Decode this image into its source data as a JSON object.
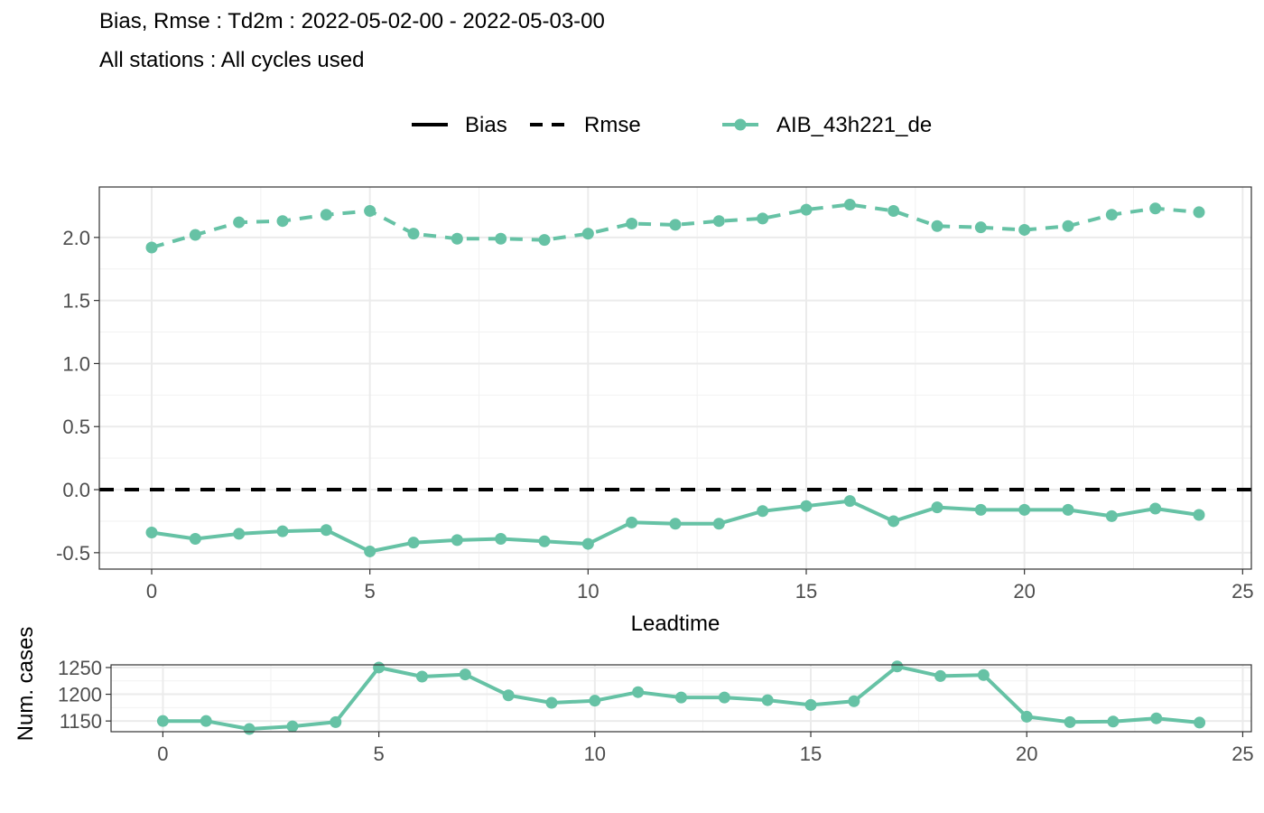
{
  "chart_data": [
    {
      "type": "line",
      "title": "Bias, Rmse : Td2m : 2022-05-02-00 - 2022-05-03-00",
      "subtitle": "All stations : All cycles used",
      "xlabel": "Leadtime",
      "ylabel": "",
      "xlim": [
        -1.2,
        25.2
      ],
      "ylim": [
        -0.63,
        2.4
      ],
      "xticks": [
        0,
        5,
        10,
        15,
        20,
        25
      ],
      "yticks": [
        -0.5,
        0.0,
        0.5,
        1.0,
        1.5,
        2.0
      ],
      "ytick_labels": [
        "-0.5",
        "0.0",
        "0.5",
        "1.0",
        "1.5",
        "2.0"
      ],
      "grid": true,
      "legend": {
        "position": "top",
        "linetype_entries": [
          {
            "label": "Bias",
            "style": "solid"
          },
          {
            "label": "Rmse",
            "style": "dashed"
          }
        ],
        "color_entries": [
          {
            "label": "AIB_43h221_de",
            "color": "#66c2a5"
          }
        ]
      },
      "reference_line": {
        "y": 0.0,
        "style": "dashed",
        "color": "#000000"
      },
      "x": [
        0,
        1,
        2,
        3,
        4,
        5,
        6,
        7,
        8,
        9,
        10,
        11,
        12,
        13,
        14,
        15,
        16,
        17,
        18,
        19,
        20,
        21,
        22,
        23,
        24
      ],
      "series": [
        {
          "name": "AIB_43h221_de",
          "metric": "Rmse",
          "style": "dashed",
          "color": "#66c2a5",
          "values": [
            1.92,
            2.02,
            2.12,
            2.13,
            2.18,
            2.21,
            2.03,
            1.99,
            1.99,
            1.98,
            2.03,
            2.11,
            2.1,
            2.13,
            2.15,
            2.22,
            2.26,
            2.21,
            2.09,
            2.08,
            2.06,
            2.09,
            2.18,
            2.23,
            2.2
          ]
        },
        {
          "name": "AIB_43h221_de",
          "metric": "Bias",
          "style": "solid",
          "color": "#66c2a5",
          "values": [
            -0.34,
            -0.39,
            -0.35,
            -0.33,
            -0.32,
            -0.49,
            -0.42,
            -0.4,
            -0.39,
            -0.41,
            -0.43,
            -0.26,
            -0.27,
            -0.27,
            -0.17,
            -0.13,
            -0.09,
            -0.25,
            -0.14,
            -0.16,
            -0.16,
            -0.16,
            -0.21,
            -0.15,
            -0.2
          ]
        }
      ]
    },
    {
      "type": "line",
      "xlabel": "",
      "ylabel": "Num. cases",
      "xlim": [
        -1.2,
        25.2
      ],
      "ylim": [
        1130,
        1255
      ],
      "xticks": [
        0,
        5,
        10,
        15,
        20,
        25
      ],
      "yticks": [
        1150,
        1200,
        1250
      ],
      "grid": true,
      "x": [
        0,
        1,
        2,
        3,
        4,
        5,
        6,
        7,
        8,
        9,
        10,
        11,
        12,
        13,
        14,
        15,
        16,
        17,
        18,
        19,
        20,
        21,
        22,
        23,
        24
      ],
      "series": [
        {
          "name": "AIB_43h221_de",
          "color": "#66c2a5",
          "values": [
            1150,
            1150,
            1135,
            1140,
            1148,
            1250,
            1233,
            1237,
            1198,
            1184,
            1188,
            1204,
            1194,
            1194,
            1189,
            1180,
            1187,
            1252,
            1234,
            1236,
            1158,
            1148,
            1149,
            1155,
            1147
          ]
        }
      ]
    }
  ]
}
